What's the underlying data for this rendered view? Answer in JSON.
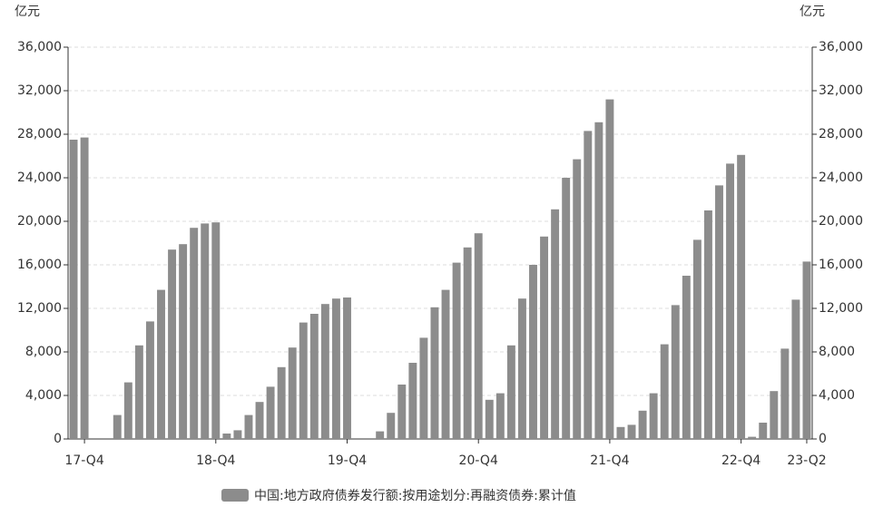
{
  "chart_data": {
    "type": "bar",
    "y_label": "亿元",
    "y2_label": "亿元",
    "categories": [
      null,
      "17-Q4",
      null,
      null,
      null,
      null,
      null,
      null,
      null,
      null,
      null,
      null,
      null,
      "18-Q4",
      null,
      null,
      null,
      null,
      null,
      null,
      null,
      null,
      null,
      null,
      null,
      "19-Q4",
      null,
      null,
      null,
      null,
      null,
      null,
      null,
      null,
      null,
      null,
      null,
      "20-Q4",
      null,
      null,
      null,
      null,
      null,
      null,
      null,
      null,
      null,
      null,
      null,
      "21-Q4",
      null,
      null,
      null,
      null,
      null,
      null,
      null,
      null,
      null,
      null,
      null,
      "22-Q4",
      null,
      null,
      null,
      null,
      null,
      "23-Q2"
    ],
    "series": [
      {
        "name": "中国:地方政府债券发行额:按用途划分:再融资债券:累计值",
        "color": "#8c8c8c",
        "values": [
          27500,
          27700,
          null,
          null,
          2200,
          5200,
          8600,
          10800,
          13700,
          17400,
          17900,
          19400,
          19800,
          19900,
          500,
          800,
          2200,
          3400,
          4800,
          6600,
          8400,
          10700,
          11500,
          12400,
          12900,
          13000,
          null,
          null,
          700,
          2400,
          5000,
          7000,
          9300,
          12100,
          13700,
          16200,
          17600,
          18900,
          3600,
          4200,
          8600,
          12900,
          16000,
          18600,
          21100,
          24000,
          25700,
          28300,
          29100,
          31200,
          1100,
          1300,
          2600,
          4200,
          8700,
          12300,
          15000,
          18300,
          21000,
          23300,
          25300,
          26100,
          200,
          1500,
          4400,
          8300,
          12800,
          16300
        ]
      }
    ],
    "ylim": [
      0,
      36000
    ],
    "yticks": [
      0,
      {
        "value": 4000,
        "label": "4,000"
      },
      {
        "value": 8000,
        "label": "8,000"
      },
      {
        "value": 12000,
        "label": "12,000"
      },
      {
        "value": 16000,
        "label": "16,000"
      },
      {
        "value": 20000,
        "label": "20,000"
      },
      {
        "value": 24000,
        "label": "24,000"
      },
      {
        "value": 28000,
        "label": "28,000"
      },
      {
        "value": 32000,
        "label": "32,000"
      },
      {
        "value": 36000,
        "label": "36,000"
      }
    ],
    "y2lim": [
      0,
      36000
    ],
    "y2ticks": [
      0,
      {
        "value": 4000,
        "label": "4,000"
      },
      {
        "value": 8000,
        "label": "8,000"
      },
      {
        "value": 12000,
        "label": "12,000"
      },
      {
        "value": 16000,
        "label": "16,000"
      },
      {
        "value": 20000,
        "label": "20,000"
      },
      {
        "value": 24000,
        "label": "24,000"
      },
      {
        "value": 28000,
        "label": "28,000"
      },
      {
        "value": 32000,
        "label": "32,000"
      },
      {
        "value": 36000,
        "label": "36,000"
      }
    ],
    "grid": true
  }
}
